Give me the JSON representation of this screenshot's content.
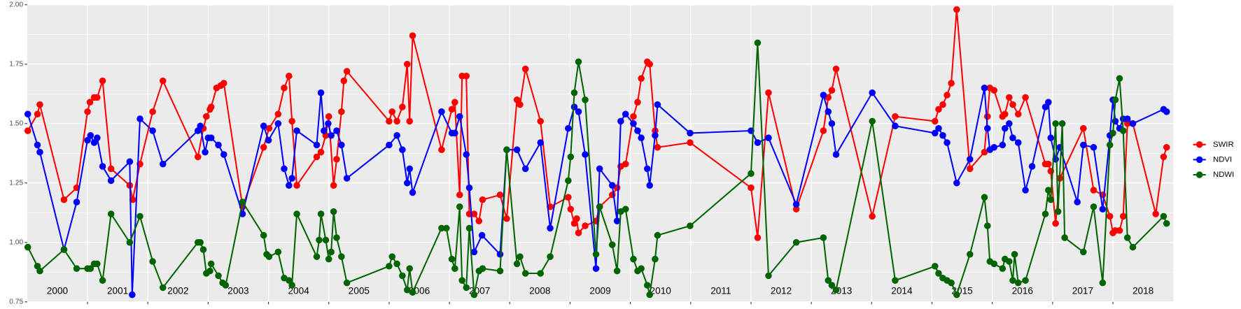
{
  "chart_data": {
    "type": "line",
    "xlim": [
      2000,
      2019
    ],
    "ylim": [
      0.75,
      2.0
    ],
    "yticks": [
      {
        "value": 0.75,
        "label": "0.75"
      },
      {
        "value": 1.0,
        "label": "1.00"
      },
      {
        "value": 1.25,
        "label": "1.25"
      },
      {
        "value": 1.5,
        "label": "1.50"
      },
      {
        "value": 1.75,
        "label": "1.75"
      },
      {
        "value": 2.0,
        "label": "2.00"
      }
    ],
    "xticks": [
      {
        "value": 2000.5,
        "label": "2000"
      },
      {
        "value": 2001.5,
        "label": "2001"
      },
      {
        "value": 2002.5,
        "label": "2002"
      },
      {
        "value": 2003.5,
        "label": "2003"
      },
      {
        "value": 2004.5,
        "label": "2004"
      },
      {
        "value": 2005.5,
        "label": "2005"
      },
      {
        "value": 2006.5,
        "label": "2006"
      },
      {
        "value": 2007.5,
        "label": "2007"
      },
      {
        "value": 2008.5,
        "label": "2008"
      },
      {
        "value": 2009.5,
        "label": "2009"
      },
      {
        "value": 2010.5,
        "label": "2010"
      },
      {
        "value": 2011.5,
        "label": "2011"
      },
      {
        "value": 2012.5,
        "label": "2012"
      },
      {
        "value": 2013.5,
        "label": "2013"
      },
      {
        "value": 2014.5,
        "label": "2014"
      },
      {
        "value": 2015.5,
        "label": "2015"
      },
      {
        "value": 2016.5,
        "label": "2016"
      },
      {
        "value": 2017.5,
        "label": "2017"
      },
      {
        "value": 2018.5,
        "label": "2018"
      }
    ],
    "x_grid": [
      2001,
      2002,
      2003,
      2004,
      2005,
      2006,
      2007,
      2008,
      2009,
      2010,
      2011,
      2012,
      2013,
      2014,
      2015,
      2016,
      2017,
      2018
    ],
    "grid": true,
    "legend": "right",
    "series": [
      {
        "name": "SWIR",
        "color": "#ff0000",
        "x": [
          2000.01,
          2000.17,
          2000.21,
          2000.61,
          2000.82,
          2001.0,
          2001.04,
          2001.11,
          2001.16,
          2001.25,
          2001.39,
          2001.7,
          2001.75,
          2001.87,
          2002.08,
          2002.25,
          2002.83,
          2002.92,
          2002.97,
          2003.03,
          2003.05,
          2003.14,
          2003.21,
          2003.26,
          2003.57,
          2003.92,
          2004.01,
          2004.16,
          2004.26,
          2004.34,
          2004.39,
          2004.47,
          2004.8,
          2004.87,
          2004.95,
          2005.0,
          2005.08,
          2005.13,
          2005.21,
          2005.25,
          2005.3,
          2006.0,
          2006.05,
          2006.13,
          2006.22,
          2006.3,
          2006.34,
          2006.39,
          2006.87,
          2007.04,
          2007.09,
          2007.17,
          2007.21,
          2007.28,
          2007.33,
          2007.41,
          2007.49,
          2007.55,
          2007.84,
          2007.95,
          2008.12,
          2008.17,
          2008.26,
          2008.51,
          2008.67,
          2008.97,
          2009.01,
          2009.07,
          2009.11,
          2009.14,
          2009.25,
          2009.43,
          2009.49,
          2009.7,
          2009.78,
          2009.84,
          2009.92,
          2010.05,
          2010.12,
          2010.18,
          2010.28,
          2010.32,
          2010.41,
          2010.45,
          2010.99,
          2012.0,
          2012.11,
          2012.29,
          2012.75,
          2013.2,
          2013.28,
          2013.34,
          2013.41,
          2014.01,
          2014.39,
          2015.05,
          2015.11,
          2015.18,
          2015.25,
          2015.32,
          2015.41,
          2015.63,
          2015.87,
          2015.92,
          2015.96,
          2016.03,
          2016.17,
          2016.21,
          2016.28,
          2016.34,
          2016.43,
          2016.55,
          2016.88,
          2016.93,
          2016.97,
          2017.05,
          2017.12,
          2017.51,
          2017.68,
          2017.83,
          2017.95,
          2018.0,
          2018.04,
          2018.11,
          2018.17,
          2018.24,
          2018.33,
          2018.71,
          2018.84,
          2018.89
        ],
        "values": [
          1.47,
          1.54,
          1.58,
          1.18,
          1.23,
          1.55,
          1.59,
          1.61,
          1.61,
          1.68,
          1.31,
          1.24,
          1.18,
          1.33,
          1.55,
          1.68,
          1.36,
          1.48,
          1.53,
          1.56,
          1.57,
          1.65,
          1.66,
          1.67,
          1.15,
          1.4,
          1.48,
          1.54,
          1.65,
          1.7,
          1.51,
          1.24,
          1.36,
          1.38,
          1.45,
          1.53,
          1.24,
          1.35,
          1.55,
          1.68,
          1.72,
          1.51,
          1.55,
          1.51,
          1.57,
          1.75,
          1.51,
          1.87,
          1.39,
          1.56,
          1.59,
          1.2,
          1.7,
          1.7,
          1.12,
          1.12,
          1.09,
          1.18,
          1.2,
          1.1,
          1.6,
          1.58,
          1.73,
          1.51,
          1.15,
          1.19,
          1.14,
          1.08,
          1.1,
          1.04,
          1.07,
          1.09,
          1.15,
          1.2,
          1.23,
          1.32,
          1.33,
          1.53,
          1.59,
          1.69,
          1.76,
          1.75,
          1.47,
          1.4,
          1.42,
          1.23,
          1.02,
          1.63,
          1.14,
          1.47,
          1.61,
          1.64,
          1.73,
          1.11,
          1.53,
          1.51,
          1.56,
          1.58,
          1.62,
          1.67,
          1.98,
          1.31,
          1.38,
          1.53,
          1.65,
          1.64,
          1.53,
          1.54,
          1.61,
          1.58,
          1.54,
          1.61,
          1.33,
          1.33,
          1.3,
          1.08,
          1.27,
          1.48,
          1.22,
          1.2,
          1.11,
          1.04,
          1.05,
          1.05,
          1.11,
          1.5,
          1.5,
          1.12,
          1.36,
          1.4
        ]
      },
      {
        "name": "NDVI",
        "color": "#0000ff",
        "x": [
          2000.01,
          2000.17,
          2000.21,
          2000.61,
          2000.82,
          2001.0,
          2001.05,
          2001.11,
          2001.16,
          2001.25,
          2001.39,
          2001.7,
          2001.74,
          2001.87,
          2002.08,
          2002.25,
          2002.83,
          2002.87,
          2002.95,
          2003.0,
          2003.05,
          2003.17,
          2003.26,
          2003.57,
          2003.92,
          2004.0,
          2004.16,
          2004.26,
          2004.34,
          2004.39,
          2004.47,
          2004.8,
          2004.87,
          2004.92,
          2004.99,
          2005.04,
          2005.13,
          2005.21,
          2005.3,
          2006.0,
          2006.13,
          2006.22,
          2006.3,
          2006.34,
          2006.39,
          2006.87,
          2007.04,
          2007.09,
          2007.17,
          2007.28,
          2007.33,
          2007.41,
          2007.54,
          2007.84,
          2007.95,
          2008.12,
          2008.26,
          2008.51,
          2008.67,
          2008.97,
          2009.07,
          2009.14,
          2009.25,
          2009.43,
          2009.49,
          2009.7,
          2009.78,
          2009.84,
          2009.92,
          2010.05,
          2010.12,
          2010.18,
          2010.28,
          2010.32,
          2010.41,
          2010.45,
          2010.99,
          2012.0,
          2012.11,
          2012.29,
          2012.75,
          2013.2,
          2013.28,
          2013.34,
          2013.41,
          2014.01,
          2014.39,
          2015.05,
          2015.11,
          2015.18,
          2015.25,
          2015.41,
          2015.63,
          2015.87,
          2015.92,
          2015.96,
          2016.03,
          2016.17,
          2016.21,
          2016.28,
          2016.34,
          2016.43,
          2016.55,
          2016.66,
          2016.88,
          2016.93,
          2016.97,
          2017.05,
          2017.12,
          2017.41,
          2017.51,
          2017.68,
          2017.83,
          2017.95,
          2018.0,
          2018.04,
          2018.11,
          2018.17,
          2018.24,
          2018.33,
          2018.84,
          2018.89
        ],
        "values": [
          1.54,
          1.41,
          1.38,
          0.97,
          1.17,
          1.43,
          1.45,
          1.42,
          1.44,
          1.32,
          1.26,
          1.34,
          0.78,
          1.52,
          1.47,
          1.33,
          1.47,
          1.49,
          1.38,
          1.44,
          1.44,
          1.41,
          1.37,
          1.12,
          1.49,
          1.43,
          1.5,
          1.31,
          1.24,
          1.27,
          1.47,
          1.41,
          1.63,
          1.47,
          1.5,
          1.45,
          1.47,
          1.41,
          1.27,
          1.41,
          1.45,
          1.39,
          1.25,
          1.31,
          1.21,
          1.55,
          1.46,
          1.46,
          1.53,
          1.37,
          1.23,
          0.96,
          1.03,
          0.95,
          1.39,
          1.39,
          1.31,
          1.42,
          1.06,
          1.48,
          1.57,
          1.55,
          1.37,
          0.89,
          1.31,
          1.24,
          1.09,
          1.51,
          1.54,
          1.5,
          1.47,
          1.44,
          1.31,
          1.24,
          1.45,
          1.58,
          1.46,
          1.47,
          1.42,
          1.44,
          1.16,
          1.62,
          1.55,
          1.5,
          1.37,
          1.63,
          1.49,
          1.46,
          1.48,
          1.45,
          1.42,
          1.25,
          1.35,
          1.65,
          1.48,
          1.39,
          1.4,
          1.41,
          1.48,
          1.5,
          1.44,
          1.42,
          1.22,
          1.32,
          1.57,
          1.59,
          1.44,
          1.35,
          1.4,
          1.17,
          1.41,
          1.4,
          1.14,
          1.45,
          1.6,
          1.51,
          1.48,
          1.52,
          1.52,
          1.5,
          1.56,
          1.55
        ]
      },
      {
        "name": "NDWI",
        "color": "#006400",
        "x": [
          2000.01,
          2000.17,
          2000.21,
          2000.61,
          2000.82,
          2001.0,
          2001.05,
          2001.11,
          2001.16,
          2001.25,
          2001.39,
          2001.7,
          2001.87,
          2002.08,
          2002.25,
          2002.83,
          2002.87,
          2002.92,
          2002.97,
          2003.03,
          2003.05,
          2003.17,
          2003.24,
          2003.29,
          2003.57,
          2003.92,
          2003.97,
          2004.01,
          2004.16,
          2004.26,
          2004.34,
          2004.39,
          2004.47,
          2004.8,
          2004.84,
          2004.87,
          2004.95,
          2005.0,
          2005.04,
          2005.08,
          2005.13,
          2005.21,
          2005.3,
          2006.0,
          2006.05,
          2006.13,
          2006.22,
          2006.3,
          2006.34,
          2006.39,
          2006.87,
          2006.95,
          2007.04,
          2007.09,
          2007.17,
          2007.21,
          2007.28,
          2007.33,
          2007.41,
          2007.49,
          2007.55,
          2007.84,
          2007.95,
          2008.12,
          2008.17,
          2008.26,
          2008.51,
          2008.67,
          2008.97,
          2009.01,
          2009.07,
          2009.14,
          2009.25,
          2009.43,
          2009.49,
          2009.7,
          2009.78,
          2009.84,
          2009.92,
          2010.05,
          2010.12,
          2010.18,
          2010.28,
          2010.32,
          2010.41,
          2010.45,
          2010.99,
          2012.0,
          2012.11,
          2012.29,
          2012.75,
          2013.2,
          2013.28,
          2013.34,
          2013.41,
          2014.01,
          2014.39,
          2015.05,
          2015.11,
          2015.18,
          2015.25,
          2015.32,
          2015.41,
          2015.63,
          2015.87,
          2015.92,
          2015.96,
          2016.03,
          2016.17,
          2016.21,
          2016.28,
          2016.34,
          2016.37,
          2016.43,
          2016.55,
          2016.88,
          2016.93,
          2016.97,
          2017.05,
          2017.09,
          2017.16,
          2017.2,
          2017.51,
          2017.68,
          2017.83,
          2017.95,
          2018.0,
          2018.04,
          2018.11,
          2018.17,
          2018.24,
          2018.33,
          2018.84,
          2018.89
        ],
        "values": [
          0.98,
          0.9,
          0.88,
          0.97,
          0.89,
          0.89,
          0.89,
          0.91,
          0.91,
          0.84,
          1.12,
          1.0,
          1.11,
          0.92,
          0.81,
          1.0,
          1.0,
          0.97,
          0.87,
          0.88,
          0.91,
          0.86,
          0.83,
          0.82,
          1.17,
          1.03,
          0.95,
          0.94,
          0.96,
          0.85,
          0.84,
          0.82,
          1.12,
          0.94,
          1.01,
          1.12,
          1.01,
          0.93,
          0.96,
          1.13,
          1.02,
          0.94,
          0.83,
          0.9,
          0.94,
          0.91,
          0.86,
          0.8,
          0.89,
          0.79,
          1.06,
          1.06,
          0.93,
          0.89,
          1.15,
          0.84,
          0.81,
          1.06,
          0.78,
          0.88,
          0.89,
          0.88,
          1.39,
          0.91,
          0.94,
          0.87,
          0.87,
          0.94,
          1.26,
          1.36,
          1.63,
          1.76,
          1.6,
          0.95,
          1.15,
          0.99,
          0.88,
          1.13,
          1.14,
          0.93,
          0.88,
          0.89,
          0.82,
          0.78,
          0.93,
          1.03,
          1.07,
          1.29,
          1.84,
          0.86,
          1.0,
          1.02,
          0.84,
          0.82,
          0.8,
          1.51,
          0.84,
          0.9,
          0.87,
          0.85,
          0.84,
          0.83,
          0.78,
          0.95,
          1.19,
          1.07,
          0.92,
          0.91,
          0.89,
          0.93,
          0.92,
          0.84,
          0.95,
          0.83,
          0.84,
          1.12,
          1.22,
          1.18,
          1.5,
          1.13,
          1.5,
          1.02,
          0.96,
          1.15,
          0.83,
          1.41,
          1.46,
          1.6,
          1.69,
          1.47,
          1.02,
          0.98,
          1.11,
          1.08
        ]
      }
    ]
  }
}
